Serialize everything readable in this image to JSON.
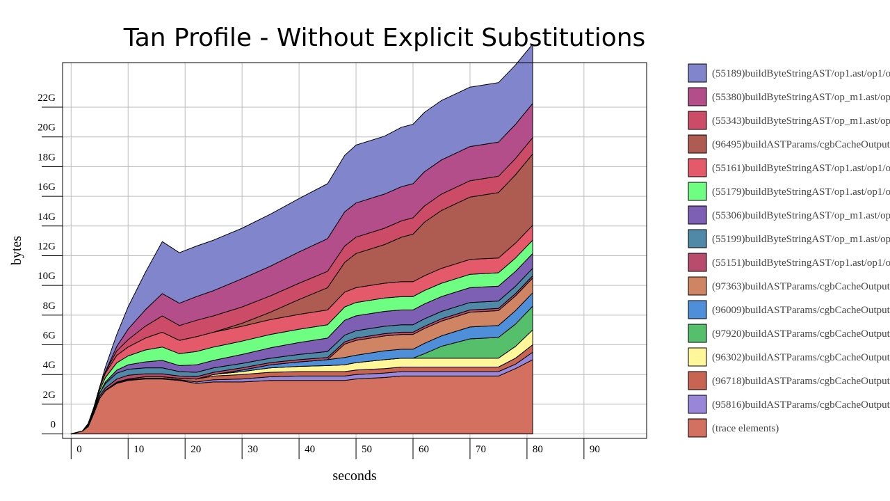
{
  "chart_data": {
    "type": "area",
    "title": "Tan Profile - Without Explicit Substitutions",
    "xlabel": "seconds",
    "ylabel": "bytes",
    "xlim": [
      -1.5,
      101
    ],
    "ylim": [
      -0.3,
      25
    ],
    "x_ticks": [
      0,
      10,
      20,
      30,
      40,
      50,
      60,
      70,
      80,
      90
    ],
    "y_ticks": [
      0,
      2,
      4,
      6,
      8,
      10,
      12,
      14,
      16,
      18,
      20,
      22
    ],
    "y_tick_labels": [
      "0",
      "2G",
      "4G",
      "6G",
      "8G",
      "10G",
      "12G",
      "14G",
      "16G",
      "18G",
      "20G",
      "22G"
    ],
    "grid": true,
    "legend_position": "right",
    "x": [
      0,
      2,
      3,
      4,
      5,
      6,
      8,
      10,
      13,
      16,
      19,
      22,
      25,
      30,
      35,
      40,
      45,
      48,
      50,
      55,
      58,
      60,
      62,
      65,
      70,
      75,
      78,
      81
    ],
    "series": [
      {
        "name": "(trace elements)",
        "color": "#d4705f",
        "values": [
          0,
          0.2,
          0.5,
          1.4,
          2.4,
          2.9,
          3.4,
          3.6,
          3.7,
          3.7,
          3.6,
          3.4,
          3.5,
          3.5,
          3.6,
          3.6,
          3.6,
          3.6,
          3.7,
          3.8,
          3.9,
          3.9,
          3.9,
          3.9,
          3.9,
          3.9,
          4.4,
          5.0
        ]
      },
      {
        "name": "(95816)buildASTParams/cgbCacheOutput",
        "color": "#9a86d8",
        "values": [
          0,
          0,
          0,
          0,
          0,
          0.02,
          0.04,
          0.05,
          0.05,
          0.05,
          0.05,
          0.1,
          0.15,
          0.2,
          0.25,
          0.3,
          0.3,
          0.3,
          0.3,
          0.3,
          0.3,
          0.3,
          0.3,
          0.3,
          0.3,
          0.3,
          0.3,
          0.5
        ]
      },
      {
        "name": "(96718)buildASTParams/cgbCacheOutput",
        "color": "#c86452",
        "values": [
          0,
          0,
          0,
          0,
          0,
          0.02,
          0.05,
          0.05,
          0.1,
          0.1,
          0.1,
          0.2,
          0.25,
          0.3,
          0.3,
          0.3,
          0.3,
          0.3,
          0.3,
          0.3,
          0.3,
          0.3,
          0.3,
          0.3,
          0.3,
          0.3,
          0.4,
          0.5
        ]
      },
      {
        "name": "(96302)buildASTParams/cgbCacheOutput",
        "color": "#fff79a",
        "values": [
          0,
          0,
          0,
          0,
          0,
          0,
          0,
          0,
          0,
          0,
          0,
          0,
          0.1,
          0.2,
          0.3,
          0.35,
          0.4,
          0.45,
          0.5,
          0.6,
          0.6,
          0.6,
          0.6,
          0.6,
          0.6,
          0.6,
          0.8,
          1.0
        ]
      },
      {
        "name": "(97920)buildASTParams/cgbCacheOutput",
        "color": "#55bf6c",
        "values": [
          0,
          0,
          0,
          0,
          0,
          0,
          0,
          0,
          0,
          0,
          0,
          0,
          0,
          0,
          0,
          0,
          0,
          0,
          0,
          0,
          0,
          0,
          0.3,
          0.8,
          1.3,
          1.4,
          1.5,
          1.6
        ]
      },
      {
        "name": "(96009)buildASTParams/cgbCacheOutput",
        "color": "#4f8fd9",
        "values": [
          0,
          0,
          0,
          0,
          0,
          0,
          0,
          0,
          0,
          0,
          0,
          0,
          0,
          0.1,
          0.2,
          0.3,
          0.4,
          0.5,
          0.5,
          0.6,
          0.6,
          0.6,
          0.7,
          0.7,
          0.8,
          0.8,
          0.9,
          0.9
        ]
      },
      {
        "name": "(97363)buildASTParams/cgbCacheOutput",
        "color": "#cf8463",
        "values": [
          0,
          0,
          0,
          0,
          0,
          0,
          0,
          0,
          0,
          0,
          0,
          0,
          0,
          0,
          0,
          0,
          0,
          0.9,
          1.0,
          1.0,
          1.0,
          1.0,
          1.0,
          1.0,
          1.0,
          1.0,
          1.0,
          1.0
        ]
      },
      {
        "name": "(55151)buildByteStringAST/op1.ast/op1/o",
        "color": "#b94c6c",
        "values": [
          0,
          0,
          0.05,
          0.1,
          0.15,
          0.15,
          0.2,
          0.25,
          0.2,
          0.2,
          0.15,
          0.15,
          0.15,
          0.15,
          0.15,
          0.15,
          0.15,
          0.15,
          0.15,
          0.15,
          0.15,
          0.15,
          0.15,
          0.15,
          0.15,
          0.15,
          0.15,
          0.15
        ]
      },
      {
        "name": "(55199)buildByteStringAST/op_m1.ast/op",
        "color": "#5088a8",
        "values": [
          0,
          0,
          0.05,
          0.1,
          0.2,
          0.3,
          0.4,
          0.4,
          0.4,
          0.4,
          0.3,
          0.3,
          0.3,
          0.3,
          0.3,
          0.35,
          0.4,
          0.45,
          0.5,
          0.5,
          0.5,
          0.5,
          0.5,
          0.5,
          0.5,
          0.5,
          0.5,
          0.5
        ]
      },
      {
        "name": "(55306)buildByteStringAST/op_m1.ast/op",
        "color": "#7d60b4",
        "values": [
          0,
          0,
          0,
          0,
          0,
          0.1,
          0.2,
          0.3,
          0.4,
          0.5,
          0.4,
          0.5,
          0.5,
          0.6,
          0.7,
          0.8,
          0.9,
          1.0,
          1.0,
          1.0,
          1.0,
          1.0,
          1.0,
          1.0,
          1.0,
          1.0,
          1.0,
          1.0
        ]
      },
      {
        "name": "(55179)buildByteStringAST/op1.ast/op1/o",
        "color": "#6eff82",
        "values": [
          0,
          0,
          0.05,
          0.1,
          0.2,
          0.3,
          0.5,
          0.6,
          0.8,
          0.9,
          0.8,
          0.9,
          0.9,
          0.9,
          0.9,
          0.9,
          0.9,
          0.9,
          0.9,
          0.9,
          0.9,
          0.9,
          0.9,
          0.9,
          0.9,
          0.9,
          0.9,
          0.9
        ]
      },
      {
        "name": "(55161)buildByteStringAST/op1.ast/op1/o",
        "color": "#e55a6a",
        "values": [
          0,
          0,
          0.05,
          0.1,
          0.2,
          0.3,
          0.5,
          0.6,
          0.8,
          1.0,
          0.9,
          1.0,
          1.0,
          1.0,
          1.0,
          1.0,
          1.0,
          1.0,
          1.0,
          1.0,
          1.0,
          1.0,
          1.0,
          1.0,
          1.0,
          1.0,
          1.0,
          1.0
        ]
      },
      {
        "name": "(96495)buildASTParams/cgbCacheOutput",
        "color": "#ae5c52",
        "values": [
          0,
          0,
          0,
          0,
          0,
          0,
          0,
          0,
          0,
          0,
          0,
          0,
          0,
          0.2,
          0.5,
          1.0,
          1.5,
          2.0,
          2.3,
          2.6,
          3.0,
          3.2,
          3.6,
          3.9,
          4.2,
          4.4,
          4.6,
          4.8
        ]
      },
      {
        "name": "(55343)buildByteStringAST/op_m1.ast/op",
        "color": "#cc4c68",
        "values": [
          0,
          0,
          0,
          0,
          0,
          0.1,
          0.3,
          0.5,
          0.8,
          1.1,
          1.0,
          1.1,
          1.1,
          1.1,
          1.1,
          1.1,
          1.1,
          1.1,
          1.1,
          1.1,
          1.1,
          1.1,
          1.1,
          1.1,
          1.1,
          1.1,
          1.1,
          1.1
        ]
      },
      {
        "name": "(55380)buildByteStringAST/op_m1.ast/op",
        "color": "#b44e8a",
        "values": [
          0,
          0,
          0,
          0,
          0,
          0,
          0.3,
          0.7,
          1.1,
          1.5,
          1.5,
          1.6,
          1.7,
          1.9,
          2.0,
          2.1,
          2.2,
          2.3,
          2.3,
          2.3,
          2.3,
          2.3,
          2.3,
          2.3,
          2.3,
          2.3,
          2.3,
          2.3
        ]
      },
      {
        "name": "(55189)buildByteStringAST/op1.ast/op1/o",
        "color": "#8186cc",
        "values": [
          0,
          0,
          0,
          0,
          0,
          0.3,
          0.8,
          1.5,
          2.5,
          3.5,
          3.4,
          3.4,
          3.4,
          3.4,
          3.5,
          3.6,
          3.7,
          3.8,
          3.9,
          3.9,
          4.0,
          4.0,
          4.0,
          4.0,
          4.0,
          4.0,
          4.0,
          4.0
        ]
      }
    ]
  }
}
